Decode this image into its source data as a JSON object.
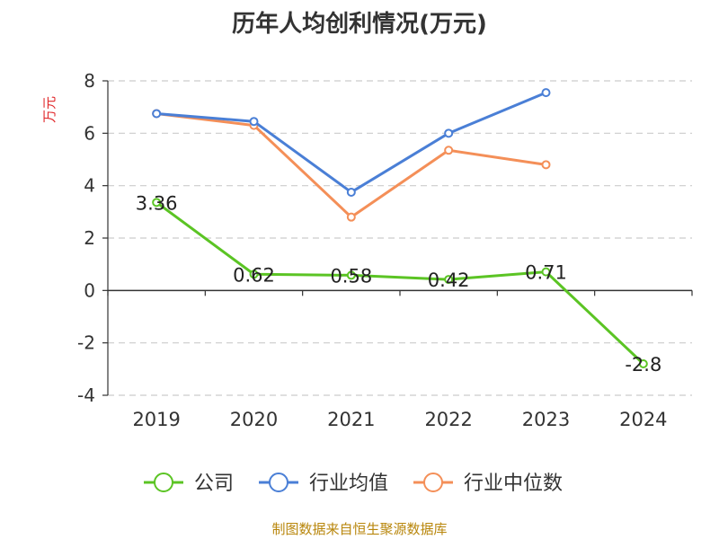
{
  "chart_data": {
    "type": "line",
    "title": "历年人均创利情况(万元)",
    "ylabel": "万元",
    "xlabel": "",
    "categories": [
      "2019",
      "2020",
      "2021",
      "2022",
      "2023",
      "2024"
    ],
    "ylim": [
      -4,
      8
    ],
    "yticks": [
      -4,
      -2,
      0,
      2,
      4,
      6,
      8
    ],
    "grid": true,
    "legend_position": "bottom",
    "series": [
      {
        "name": "公司",
        "color": "#5bc424",
        "values": [
          3.36,
          0.62,
          0.58,
          0.42,
          0.71,
          -2.8
        ],
        "labels": [
          "3.36",
          "0.62",
          "0.58",
          "0.42",
          "0.71",
          "-2.8"
        ]
      },
      {
        "name": "行业均值",
        "color": "#4a7fd6",
        "values": [
          6.75,
          6.45,
          3.75,
          6.0,
          7.55,
          null
        ]
      },
      {
        "name": "行业中位数",
        "color": "#f48f58",
        "values": [
          6.75,
          6.3,
          2.8,
          5.35,
          4.8,
          null
        ]
      }
    ]
  },
  "source": "制图数据来自恒生聚源数据库"
}
